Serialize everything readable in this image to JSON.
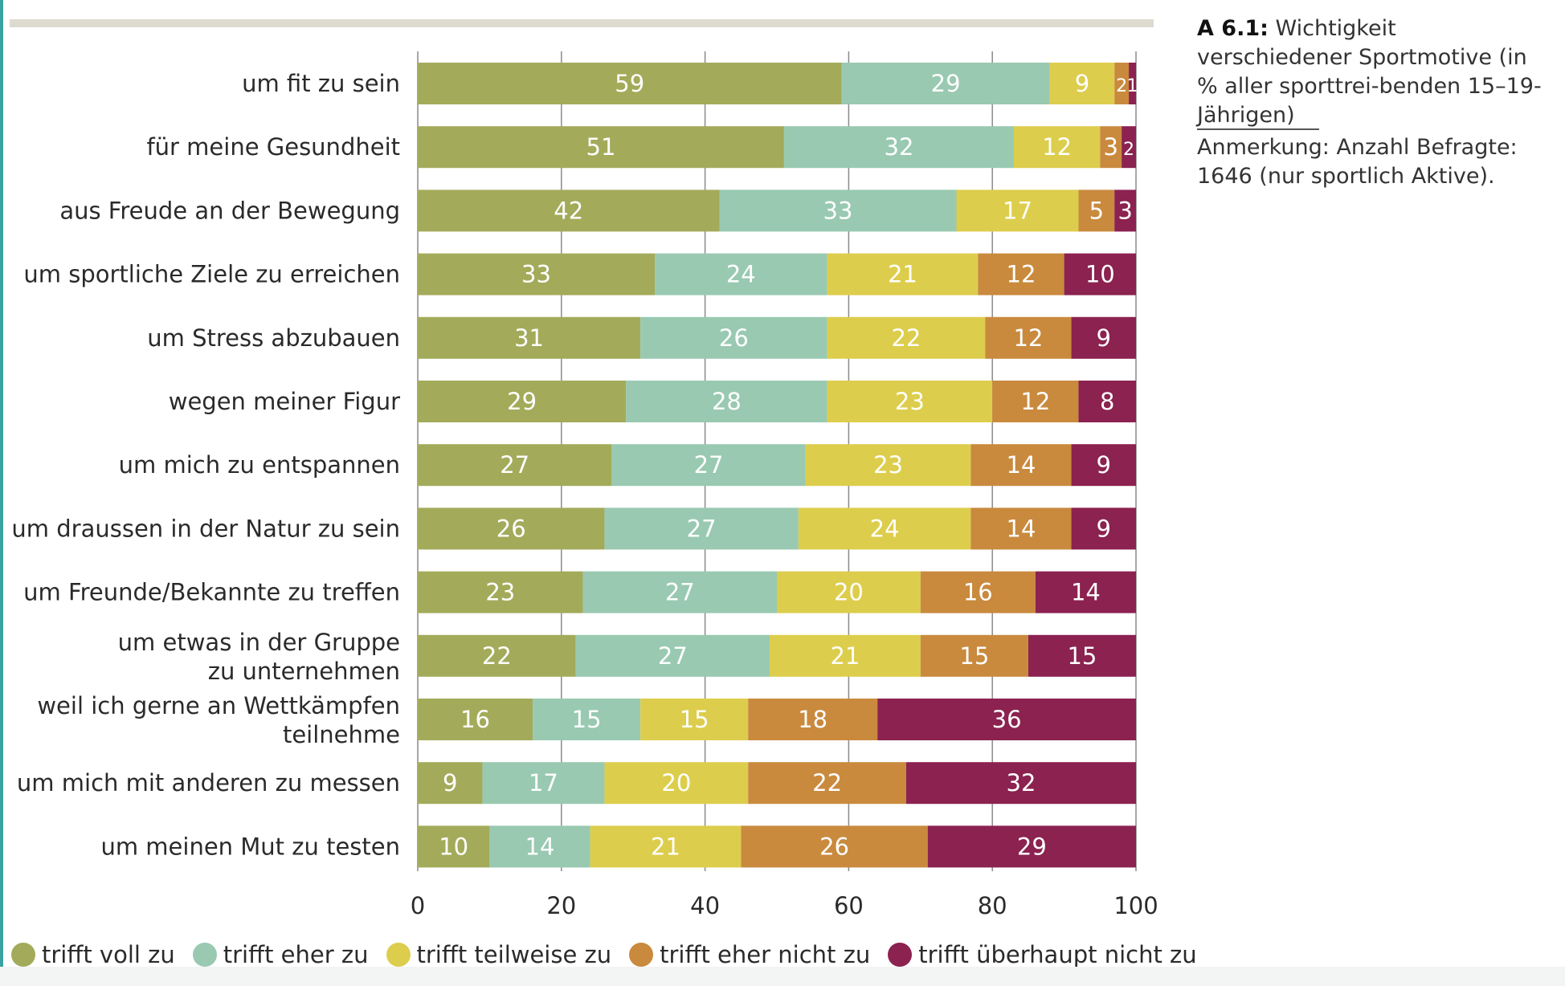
{
  "caption": {
    "figure_label": "A 6.1:",
    "title": " Wichtigkeit verschiedener Sportmotive (in % aller sporttrei-benden 15–19-Jährigen)",
    "note": "Anmerkung: Anzahl Befragte: 1646 (nur sportlich Aktive)."
  },
  "legend": [
    {
      "label": "trifft voll zu",
      "color": "#a3ab5a"
    },
    {
      "label": "trifft eher zu",
      "color": "#99c9b1"
    },
    {
      "label": "trifft teilweise zu",
      "color": "#ddcd4c"
    },
    {
      "label": "trifft eher nicht zu",
      "color": "#c98a3e"
    },
    {
      "label": "trifft überhaupt nicht zu",
      "color": "#8b2250"
    }
  ],
  "chart_data": {
    "type": "bar",
    "orientation": "horizontal",
    "stacked": true,
    "xlim": [
      0,
      100
    ],
    "x_ticks": [
      "0",
      "20",
      "40",
      "60",
      "80",
      "100"
    ],
    "grid": true,
    "legend_position": "bottom",
    "categories": [
      [
        "um fit zu sein"
      ],
      [
        "für meine Gesundheit"
      ],
      [
        "aus Freude an der Bewegung"
      ],
      [
        "um sportliche Ziele zu erreichen"
      ],
      [
        "um Stress abzubauen"
      ],
      [
        "wegen meiner Figur"
      ],
      [
        "um mich zu entspannen"
      ],
      [
        "um draussen in der Natur zu sein"
      ],
      [
        "um Freunde/Bekannte zu treffen"
      ],
      [
        "um etwas in der Gruppe",
        "zu unternehmen"
      ],
      [
        "weil ich gerne an Wettkämpfen",
        "teilnehme"
      ],
      [
        "um mich mit anderen zu messen"
      ],
      [
        "um meinen Mut zu testen"
      ]
    ],
    "series": [
      {
        "name": "trifft voll zu",
        "color": "#a3ab5a",
        "values": [
          59,
          51,
          42,
          33,
          31,
          29,
          27,
          26,
          23,
          22,
          16,
          9,
          10
        ]
      },
      {
        "name": "trifft eher zu",
        "color": "#99c9b1",
        "values": [
          29,
          32,
          33,
          24,
          26,
          28,
          27,
          27,
          27,
          27,
          15,
          17,
          14
        ]
      },
      {
        "name": "trifft teilweise zu",
        "color": "#ddcd4c",
        "values": [
          9,
          12,
          17,
          21,
          22,
          23,
          23,
          24,
          20,
          21,
          15,
          20,
          21
        ]
      },
      {
        "name": "trifft eher nicht zu",
        "color": "#c98a3e",
        "values": [
          2,
          3,
          5,
          12,
          12,
          12,
          14,
          14,
          16,
          15,
          18,
          22,
          26
        ]
      },
      {
        "name": "trifft überhaupt nicht zu",
        "color": "#8b2250",
        "values": [
          1,
          2,
          3,
          10,
          9,
          8,
          9,
          9,
          14,
          15,
          36,
          32,
          29
        ]
      }
    ],
    "labels": [
      [
        "59",
        "29",
        "9",
        "2",
        "1"
      ],
      [
        "51",
        "32",
        "12",
        "3",
        "2"
      ],
      [
        "42",
        "33",
        "17",
        "5",
        "3"
      ],
      [
        "33",
        "24",
        "21",
        "12",
        "10"
      ],
      [
        "31",
        "26",
        "22",
        "12",
        "9"
      ],
      [
        "29",
        "28",
        "23",
        "12",
        "8"
      ],
      [
        "27",
        "27",
        "23",
        "14",
        "9"
      ],
      [
        "26",
        "27",
        "24",
        "14",
        "9"
      ],
      [
        "23",
        "27",
        "20",
        "16",
        "14"
      ],
      [
        "22",
        "27",
        "21",
        "15",
        "15"
      ],
      [
        "16",
        "15",
        "15",
        "18",
        "36"
      ],
      [
        "9",
        "17",
        "20",
        "22",
        "32"
      ],
      [
        "10",
        "14",
        "21",
        "26",
        "29"
      ]
    ]
  }
}
